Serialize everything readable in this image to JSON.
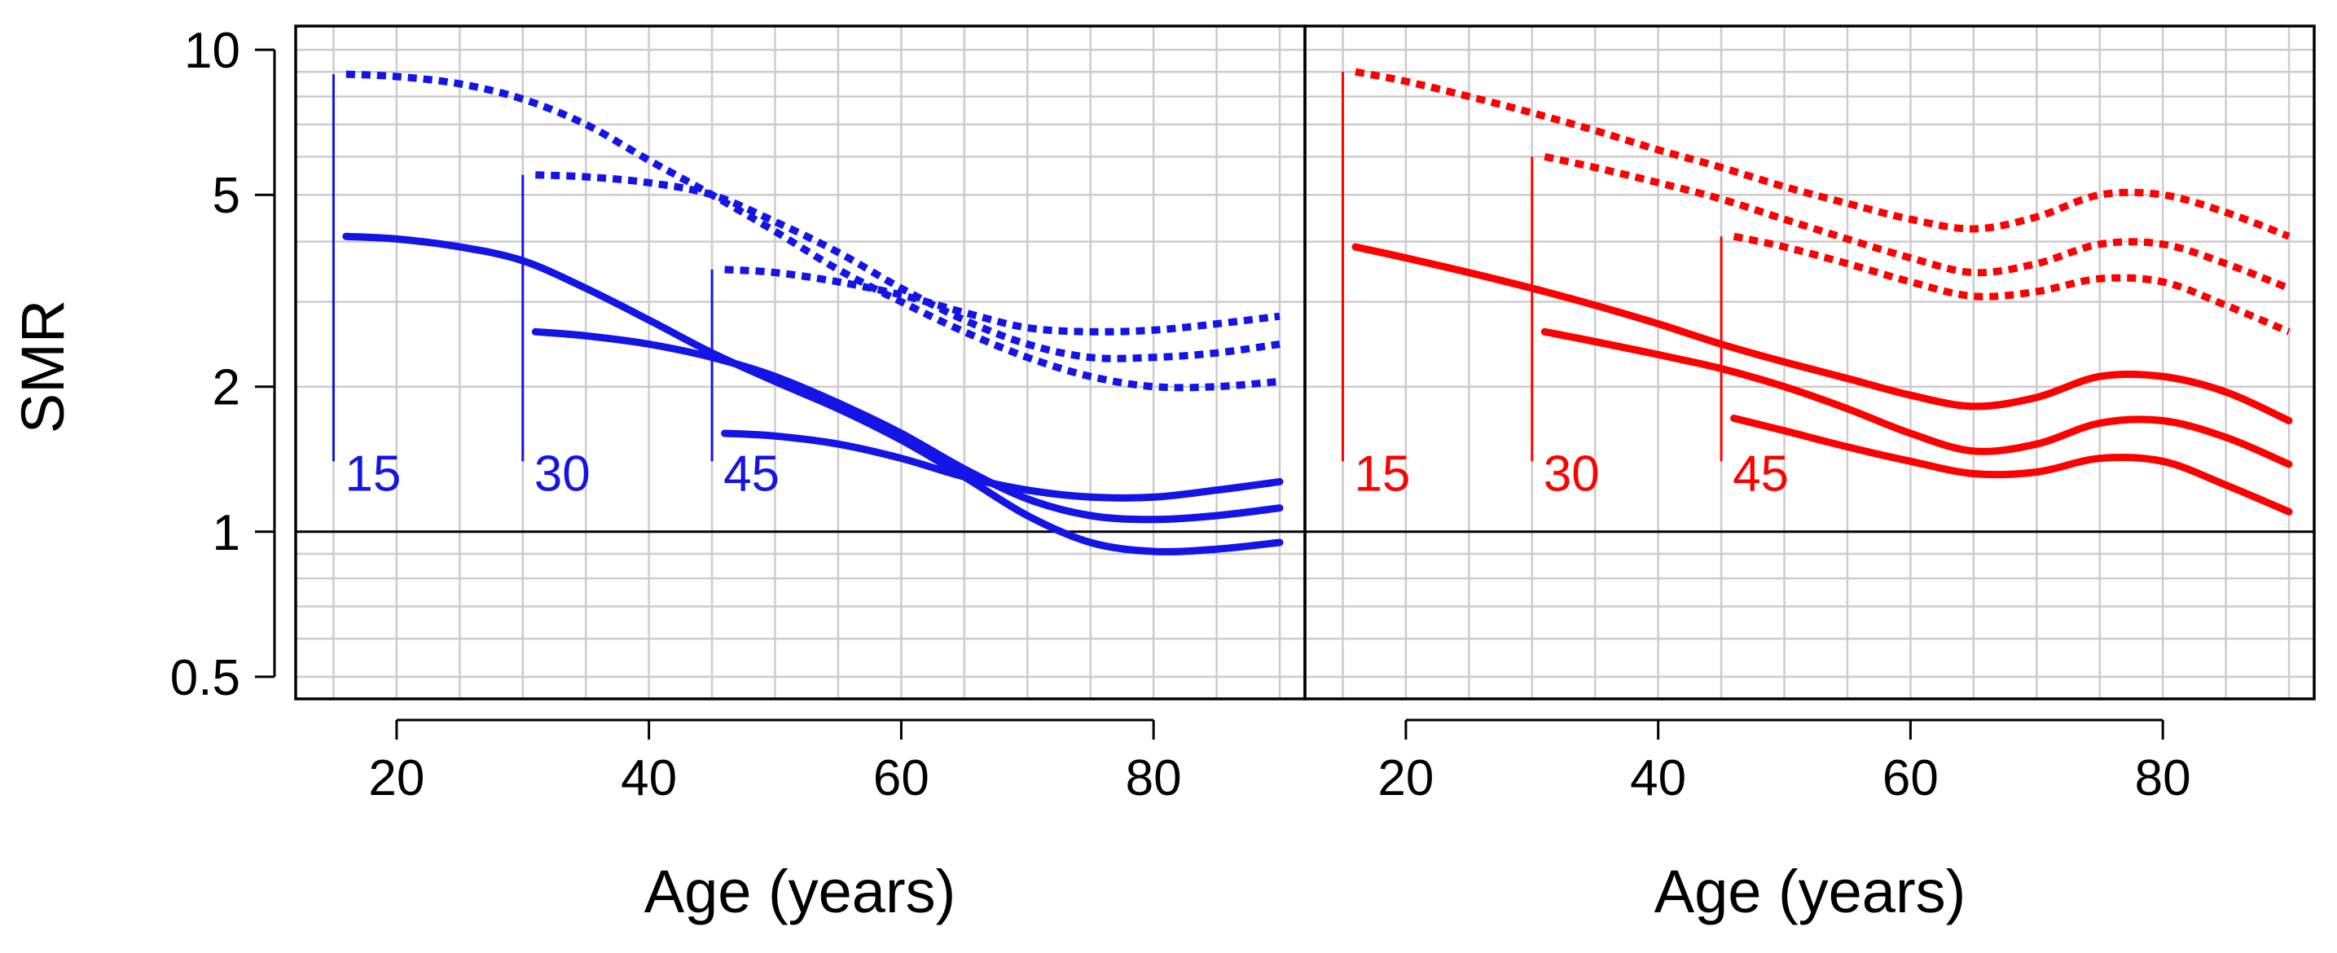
{
  "chart_data": [
    {
      "type": "line",
      "panel": "left",
      "xlabel": "Age (years)",
      "ylabel": "SMR",
      "xlim": [
        12,
        92
      ],
      "ylim": [
        0.45,
        11.2
      ],
      "y_scale": "log",
      "x_ticks": [
        20,
        40,
        60,
        80
      ],
      "y_ticks": [
        0.5,
        1,
        2,
        5,
        10
      ],
      "y_tick_labels": [
        "0.5",
        "1",
        "2",
        "5",
        "10"
      ],
      "reference_line_y": 1,
      "grid": true,
      "color": "#1414e6",
      "onset_markers": [
        {
          "age": 15,
          "label": "15",
          "y_top": 8.9,
          "y_bottom": 1.4
        },
        {
          "age": 30,
          "label": "30",
          "y_top": 5.5,
          "y_bottom": 1.4
        },
        {
          "age": 45,
          "label": "45",
          "y_top": 3.5,
          "y_bottom": 1.4
        }
      ],
      "series": [
        {
          "name": "onset 15 lower",
          "style": "solid",
          "x": [
            16,
            20,
            25,
            30,
            35,
            40,
            45,
            50,
            55,
            60,
            65,
            70,
            75,
            80,
            85,
            90
          ],
          "y": [
            4.1,
            4.05,
            3.9,
            3.65,
            3.2,
            2.75,
            2.35,
            2.05,
            1.8,
            1.55,
            1.3,
            1.08,
            0.95,
            0.91,
            0.92,
            0.95
          ]
        },
        {
          "name": "onset 15 upper",
          "style": "dotted",
          "x": [
            16,
            20,
            25,
            30,
            35,
            40,
            45,
            50,
            55,
            60,
            65,
            70,
            75,
            80,
            85,
            90
          ],
          "y": [
            8.9,
            8.8,
            8.5,
            7.9,
            7.0,
            5.9,
            5.0,
            4.2,
            3.5,
            3.0,
            2.6,
            2.3,
            2.1,
            2.0,
            2.0,
            2.05
          ]
        },
        {
          "name": "onset 30 lower",
          "style": "solid",
          "x": [
            31,
            35,
            40,
            45,
            50,
            55,
            60,
            65,
            70,
            75,
            80,
            85,
            90
          ],
          "y": [
            2.6,
            2.55,
            2.45,
            2.3,
            2.1,
            1.85,
            1.6,
            1.35,
            1.17,
            1.08,
            1.06,
            1.08,
            1.12
          ]
        },
        {
          "name": "onset 30 upper",
          "style": "dotted",
          "x": [
            31,
            35,
            40,
            45,
            50,
            55,
            60,
            65,
            70,
            75,
            80,
            85,
            90
          ],
          "y": [
            5.5,
            5.45,
            5.3,
            5.0,
            4.4,
            3.8,
            3.2,
            2.75,
            2.45,
            2.3,
            2.3,
            2.35,
            2.45
          ]
        },
        {
          "name": "onset 45 lower",
          "style": "solid",
          "x": [
            46,
            50,
            55,
            60,
            65,
            70,
            75,
            80,
            85,
            90
          ],
          "y": [
            1.6,
            1.58,
            1.52,
            1.42,
            1.3,
            1.22,
            1.18,
            1.18,
            1.22,
            1.27
          ]
        },
        {
          "name": "onset 45 upper",
          "style": "dotted",
          "x": [
            46,
            50,
            55,
            60,
            65,
            70,
            75,
            80,
            85,
            90
          ],
          "y": [
            3.5,
            3.45,
            3.3,
            3.1,
            2.85,
            2.65,
            2.6,
            2.62,
            2.7,
            2.8
          ]
        }
      ]
    },
    {
      "type": "line",
      "panel": "right",
      "xlabel": "Age (years)",
      "ylabel": "",
      "xlim": [
        12,
        92
      ],
      "ylim": [
        0.45,
        11.2
      ],
      "y_scale": "log",
      "x_ticks": [
        20,
        40,
        60,
        80
      ],
      "y_ticks": [
        0.5,
        1,
        2,
        5,
        10
      ],
      "reference_line_y": 1,
      "grid": true,
      "color": "#ff0000",
      "onset_markers": [
        {
          "age": 15,
          "label": "15",
          "y_top": 9.0,
          "y_bottom": 1.4
        },
        {
          "age": 30,
          "label": "30",
          "y_top": 6.0,
          "y_bottom": 1.4
        },
        {
          "age": 45,
          "label": "45",
          "y_top": 4.1,
          "y_bottom": 1.4
        }
      ],
      "series": [
        {
          "name": "onset 15 upper",
          "style": "dotted",
          "x": [
            16,
            20,
            25,
            30,
            35,
            40,
            45,
            50,
            55,
            60,
            65,
            70,
            75,
            80,
            85,
            90
          ],
          "y": [
            9.0,
            8.6,
            8.0,
            7.4,
            6.8,
            6.2,
            5.7,
            5.2,
            4.8,
            4.45,
            4.25,
            4.5,
            5.0,
            5.0,
            4.6,
            4.1
          ]
        },
        {
          "name": "onset 15 lower",
          "style": "solid",
          "x": [
            16,
            20,
            25,
            30,
            35,
            40,
            45,
            50,
            55,
            60,
            65,
            70,
            75,
            80,
            85,
            90
          ],
          "y": [
            3.9,
            3.7,
            3.45,
            3.2,
            2.95,
            2.7,
            2.45,
            2.25,
            2.08,
            1.92,
            1.82,
            1.9,
            2.1,
            2.1,
            1.95,
            1.7
          ]
        },
        {
          "name": "onset 30 upper",
          "style": "dotted",
          "x": [
            31,
            35,
            40,
            45,
            50,
            55,
            60,
            65,
            70,
            75,
            80,
            85,
            90
          ],
          "y": [
            6.0,
            5.7,
            5.3,
            4.9,
            4.45,
            4.05,
            3.7,
            3.45,
            3.6,
            3.95,
            3.95,
            3.6,
            3.2
          ]
        },
        {
          "name": "onset 30 lower",
          "style": "solid",
          "x": [
            31,
            35,
            40,
            45,
            50,
            55,
            60,
            65,
            70,
            75,
            80,
            85,
            90
          ],
          "y": [
            2.6,
            2.48,
            2.33,
            2.18,
            2.0,
            1.8,
            1.6,
            1.47,
            1.52,
            1.68,
            1.7,
            1.57,
            1.38
          ]
        },
        {
          "name": "onset 45 upper",
          "style": "dotted",
          "x": [
            46,
            50,
            55,
            60,
            65,
            70,
            75,
            80,
            85,
            90
          ],
          "y": [
            4.1,
            3.9,
            3.6,
            3.3,
            3.08,
            3.15,
            3.35,
            3.3,
            2.95,
            2.6
          ]
        },
        {
          "name": "onset 45 lower",
          "style": "solid",
          "x": [
            46,
            50,
            55,
            60,
            65,
            70,
            75,
            80,
            85,
            90
          ],
          "y": [
            1.72,
            1.62,
            1.5,
            1.4,
            1.32,
            1.33,
            1.42,
            1.4,
            1.25,
            1.1
          ]
        }
      ]
    }
  ]
}
